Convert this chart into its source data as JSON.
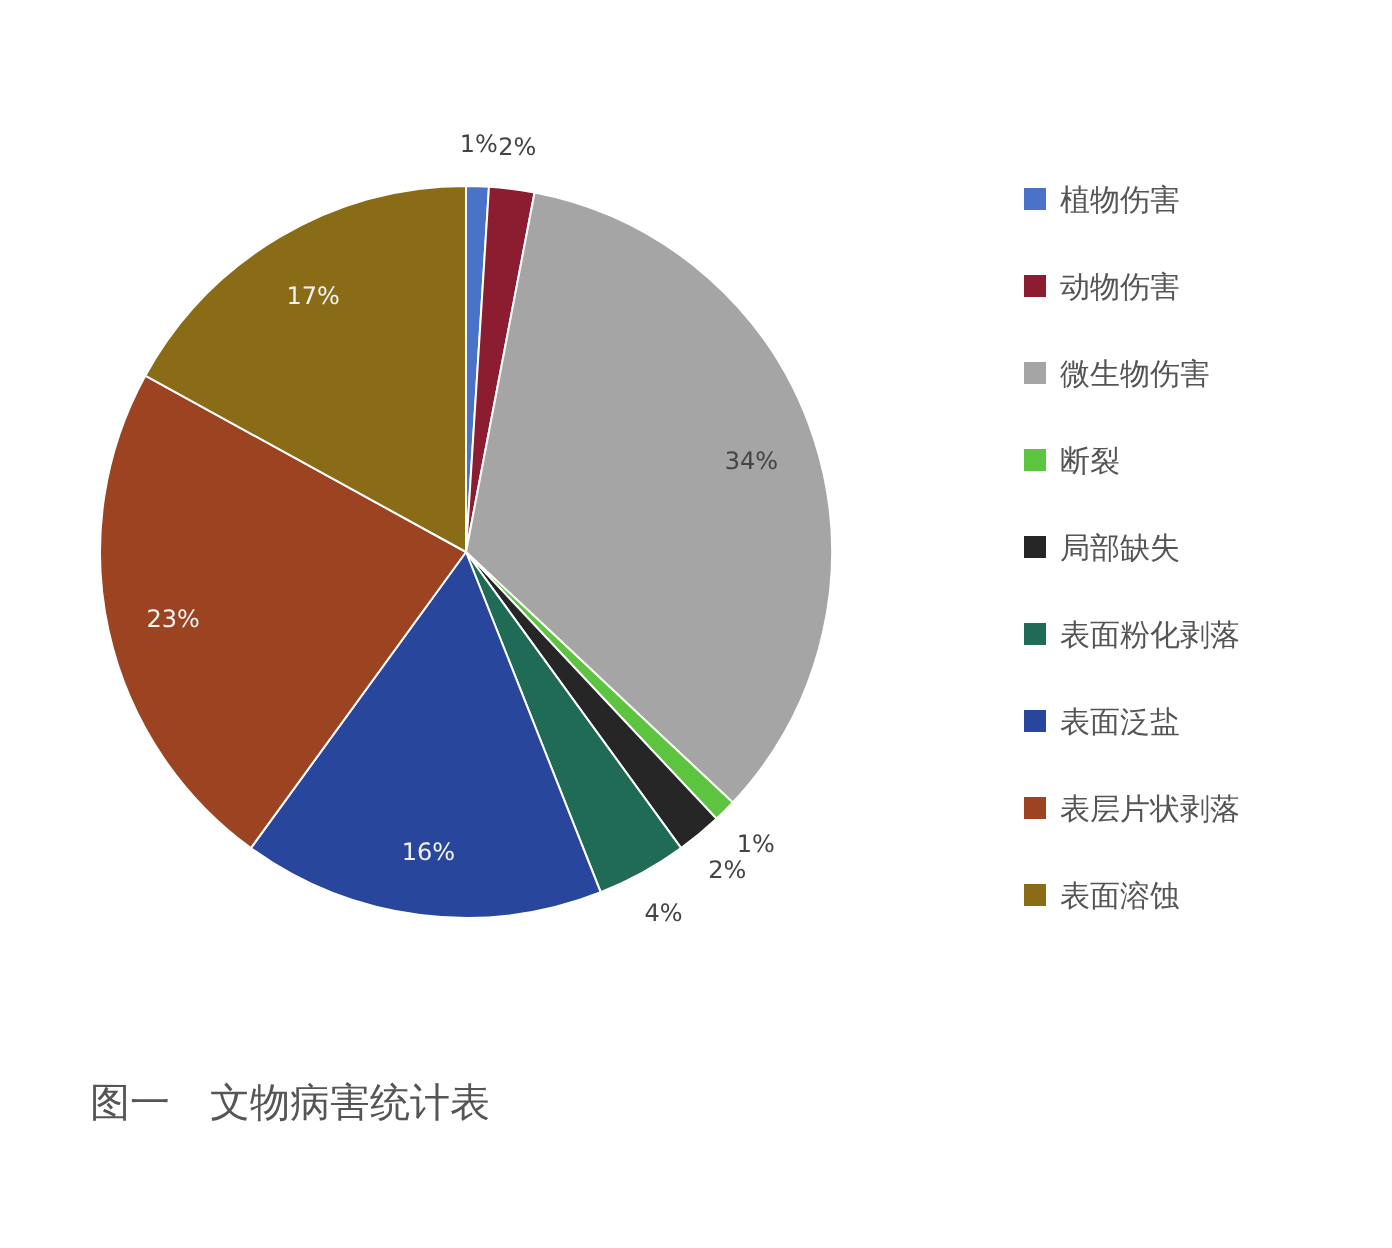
{
  "chart_data": {
    "type": "pie",
    "title": "图一　文物病害统计表",
    "categories": [
      "植物伤害",
      "动物伤害",
      "微生物伤害",
      "断裂",
      "局部缺失",
      "表面粉化剥落",
      "表面泛盐",
      "表层片状剥落",
      "表面溶蚀"
    ],
    "values": [
      1,
      2,
      34,
      1,
      2,
      4,
      16,
      23,
      17
    ],
    "colors": [
      "#4a72c8",
      "#8c1c30",
      "#a5a5a5",
      "#5cc43e",
      "#262626",
      "#1f6b55",
      "#27469c",
      "#9c4421",
      "#8a6c16"
    ],
    "value_labels": [
      "1%",
      "2%",
      "34%",
      "1%",
      "2%",
      "4%",
      "16%",
      "23%",
      "17%"
    ],
    "legend": "right"
  }
}
